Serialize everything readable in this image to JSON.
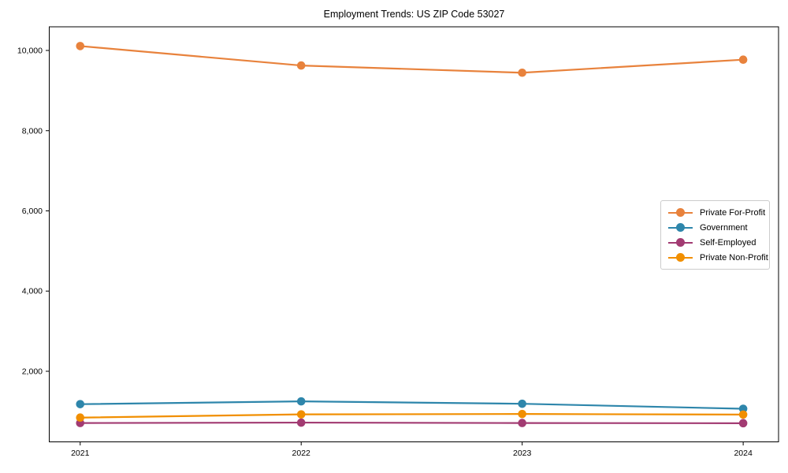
{
  "chart_data": {
    "type": "line",
    "title": "Employment Trends: US ZIP Code 53027",
    "xlabel": "",
    "ylabel": "",
    "x": [
      2021,
      2022,
      2023,
      2024
    ],
    "x_tick_labels": [
      "2021",
      "2022",
      "2023",
      "2024"
    ],
    "y_ticks": [
      2000,
      4000,
      6000,
      8000,
      10000
    ],
    "y_tick_labels": [
      "2,000",
      "4,000",
      "6,000",
      "8,000",
      "10,000"
    ],
    "xlim": [
      2020.86,
      2024.16
    ],
    "ylim": [
      240,
      10590
    ],
    "grid": false,
    "legend_position": "center-right",
    "series": [
      {
        "name": "Private For-Profit",
        "color": "#E8823C",
        "values": [
          10110,
          9625,
          9445,
          9770
        ]
      },
      {
        "name": "Government",
        "color": "#2E86AB",
        "values": [
          1180,
          1250,
          1190,
          1065
        ]
      },
      {
        "name": "Self-Employed",
        "color": "#A23B72",
        "values": [
          710,
          720,
          710,
          705
        ]
      },
      {
        "name": "Private Non-Profit",
        "color": "#F18F01",
        "values": [
          845,
          925,
          935,
          920
        ]
      }
    ]
  }
}
